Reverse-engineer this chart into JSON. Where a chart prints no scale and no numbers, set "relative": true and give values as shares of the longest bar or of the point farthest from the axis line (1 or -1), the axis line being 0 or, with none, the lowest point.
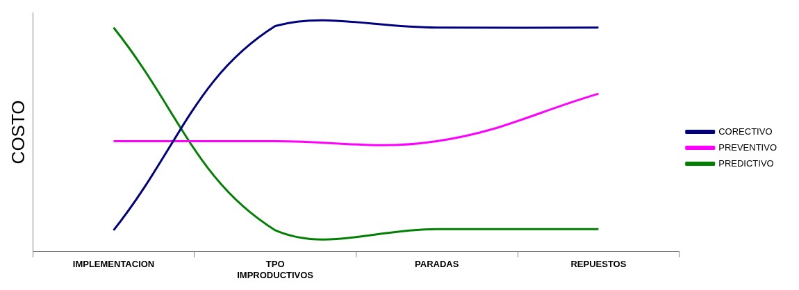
{
  "chart_data": {
    "type": "line",
    "relative": true,
    "ylabel": "COSTO",
    "categories": [
      "IMPLEMENTACION",
      "TPO IMPRODUCTIVOS",
      "PARADAS",
      "REPUESTOS"
    ],
    "tick_labels": "x",
    "grid": false,
    "legend": "right",
    "marker": "none",
    "line_style": "solid",
    "series": [
      {
        "name": "CORECTIVO",
        "color": "#000080",
        "values": [
          0.095,
          1,
          0.993,
          0.993
        ]
      },
      {
        "name": "PREVENTIVO",
        "color": "#ff00ff",
        "values": [
          0.49,
          0.49,
          0.49,
          0.7
        ]
      },
      {
        "name": "PREDICTIVO",
        "color": "#008000",
        "values": [
          0.993,
          0.095,
          0.1,
          0.1
        ]
      }
    ]
  }
}
